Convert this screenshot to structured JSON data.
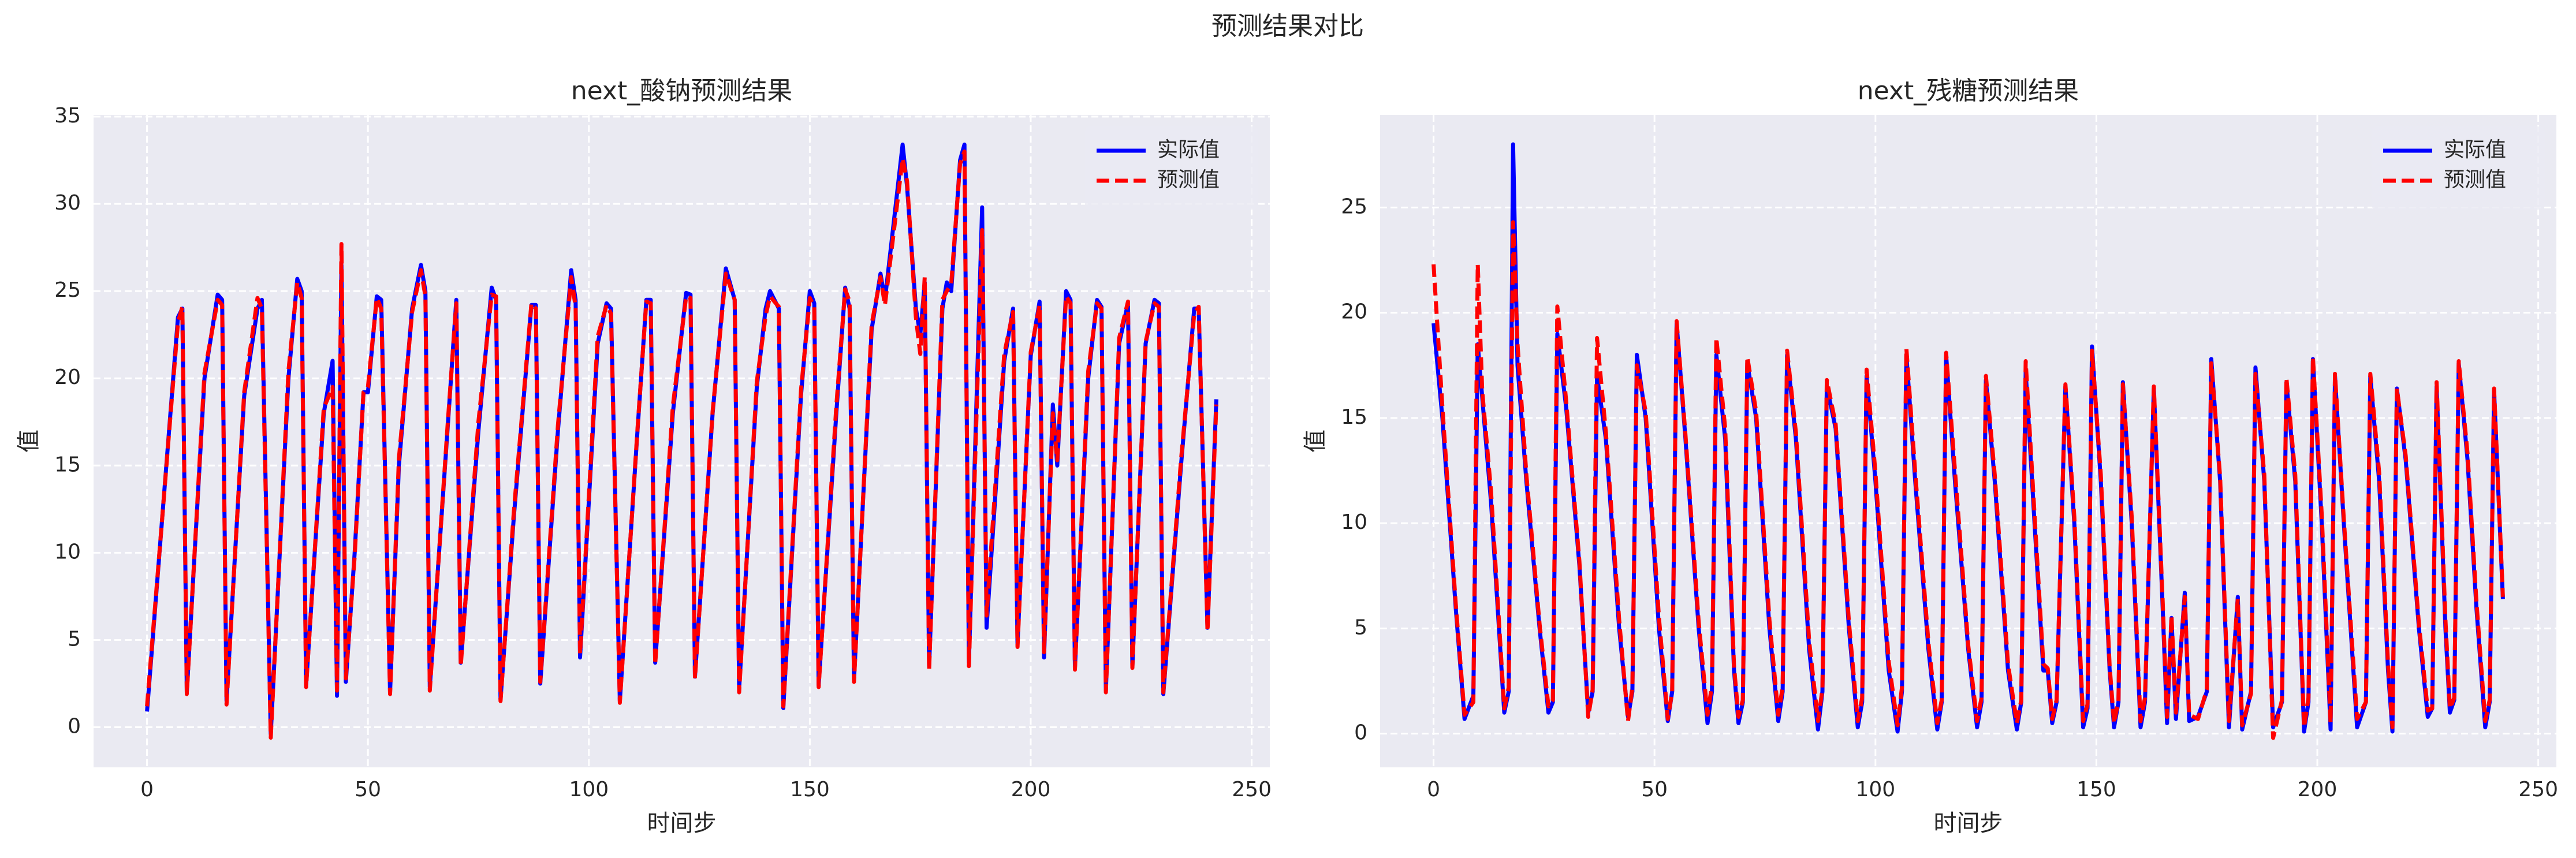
{
  "title": "预测结果对比",
  "chart_data": [
    {
      "type": "line",
      "title": "next_酸钠预测结果",
      "x_label": "时间步",
      "y_label": "值",
      "grid": true,
      "legend": "upper right",
      "xlim": [
        -12.1,
        254.1
      ],
      "xticks": [
        0,
        50,
        100,
        150,
        200,
        250
      ],
      "ylim": [
        -2.3,
        35.1
      ],
      "yticks": [
        0,
        5,
        10,
        15,
        20,
        25,
        30,
        35
      ],
      "x": [
        0,
        7,
        8,
        9,
        13,
        16,
        17,
        18,
        22,
        25,
        26,
        28,
        32,
        34,
        35,
        36,
        40,
        42,
        43,
        44,
        45,
        47,
        49,
        50,
        52,
        53,
        55,
        57,
        60,
        62,
        63,
        64,
        68,
        70,
        71,
        75,
        78,
        79,
        80,
        83,
        87,
        88,
        89,
        93,
        96,
        97,
        98,
        102,
        104,
        105,
        107,
        111,
        113,
        114,
        115,
        119,
        122,
        123,
        124,
        128,
        131,
        133,
        134,
        138,
        140,
        141,
        143,
        144,
        148,
        150,
        151,
        152,
        156,
        158,
        159,
        160,
        164,
        166,
        167,
        171,
        172,
        174,
        175,
        176,
        177,
        180,
        181,
        182,
        184,
        185,
        186,
        189,
        190,
        194,
        196,
        197,
        200,
        202,
        203,
        205,
        206,
        208,
        209,
        210,
        213,
        215,
        216,
        217,
        220,
        222,
        223,
        226,
        228,
        229,
        230,
        234,
        237,
        238,
        240,
        242
      ],
      "series": [
        {
          "name": "实际值",
          "color": "#0000ff",
          "style": "solid",
          "values": [
            0.9,
            23.5,
            24,
            2,
            20,
            24.8,
            24.5,
            1.5,
            19,
            24,
            24.5,
            -0.4,
            20,
            25.7,
            25,
            2.4,
            18,
            21,
            1.8,
            26.5,
            2.6,
            10,
            19.2,
            19.2,
            24.7,
            24.5,
            2,
            15,
            24,
            26.5,
            25,
            2.3,
            17,
            24.5,
            3.7,
            17,
            25.2,
            24.5,
            1.6,
            12,
            24.2,
            24.2,
            2.5,
            17,
            26.2,
            24.5,
            4,
            22,
            24.3,
            24,
            1.5,
            17,
            24.5,
            24.5,
            3.7,
            18,
            24.9,
            24.8,
            2.9,
            18,
            26.3,
            24.5,
            2.2,
            19.5,
            24,
            25,
            24,
            1.1,
            19,
            25,
            24.3,
            2.4,
            18,
            25.2,
            24,
            2.7,
            22.8,
            26,
            24.5,
            33.4,
            31,
            24,
            22.5,
            25.5,
            3.5,
            24,
            25.5,
            25,
            32.5,
            33.4,
            3.7,
            29.8,
            5.7,
            21,
            24,
            4.8,
            21.3,
            24.4,
            4,
            18.5,
            15,
            25,
            24.5,
            3.4,
            20,
            24.5,
            24.1,
            2.1,
            22,
            24.3,
            3.5,
            22,
            24.5,
            24.3,
            1.9,
            15,
            24,
            24,
            5.7,
            18.8
          ]
        },
        {
          "name": "预测值",
          "color": "#ff0000",
          "style": "dashed",
          "values": [
            1.2,
            23.2,
            24.1,
            1.9,
            20.3,
            24.5,
            24.2,
            1.3,
            19.2,
            24.6,
            24,
            -0.6,
            20.4,
            25.5,
            24.6,
            2.3,
            18.3,
            19.5,
            2.1,
            27.7,
            2.8,
            9.8,
            19.2,
            19.5,
            24.6,
            24,
            1.9,
            15.4,
            23.8,
            26.2,
            24.7,
            2.1,
            17.2,
            24.3,
            3.5,
            17.5,
            24.8,
            24.7,
            1.5,
            12.3,
            24.3,
            24,
            2.6,
            17.3,
            25.8,
            24.1,
            4.2,
            22.4,
            24.2,
            23.7,
            1.4,
            17.1,
            24.4,
            24.3,
            3.6,
            18.4,
            24.7,
            24.6,
            2.8,
            18.1,
            26,
            24.5,
            2,
            19.8,
            23.6,
            24.7,
            24.1,
            1.2,
            19.3,
            24.6,
            24.1,
            2.3,
            18.4,
            25.1,
            24.4,
            2.6,
            23.1,
            25.8,
            24.2,
            32.6,
            31.3,
            23.5,
            21.4,
            25.8,
            3.3,
            24.5,
            25,
            25.4,
            32.3,
            33,
            3.5,
            28.5,
            6.4,
            21.4,
            23.8,
            4.6,
            21.5,
            24.2,
            4.3,
            18,
            15.3,
            24.7,
            24.3,
            3.3,
            20.4,
            24.3,
            24,
            2,
            22.3,
            24.4,
            3.4,
            22.1,
            24.3,
            24.1,
            2,
            15.3,
            23.7,
            24.1,
            5.5,
            18.5
          ]
        }
      ]
    },
    {
      "type": "line",
      "title": "next_残糖预测结果",
      "x_label": "时间步",
      "y_label": "值",
      "grid": true,
      "legend": "upper right",
      "xlim": [
        -12.1,
        254.1
      ],
      "xticks": [
        0,
        50,
        100,
        150,
        200,
        250
      ],
      "ylim": [
        -1.6,
        29.4
      ],
      "yticks": [
        0,
        5,
        10,
        15,
        20,
        25
      ],
      "x": [
        0,
        2,
        5,
        7,
        9,
        10,
        11,
        13,
        16,
        17,
        18,
        19,
        21,
        24,
        26,
        27,
        28,
        30,
        33,
        35,
        36,
        37,
        39,
        42,
        44,
        45,
        46,
        48,
        51,
        53,
        54,
        55,
        57,
        60,
        62,
        63,
        64,
        66,
        68,
        69,
        70,
        71,
        73,
        76,
        78,
        79,
        80,
        82,
        85,
        87,
        88,
        89,
        91,
        94,
        96,
        97,
        98,
        100,
        103,
        105,
        106,
        107,
        109,
        112,
        114,
        115,
        116,
        118,
        121,
        123,
        124,
        125,
        127,
        130,
        132,
        133,
        134,
        136,
        138,
        139,
        140,
        141,
        143,
        145,
        147,
        148,
        149,
        151,
        153,
        154,
        155,
        156,
        158,
        160,
        161,
        163,
        165,
        166,
        167,
        168,
        170,
        171,
        173,
        175,
        176,
        178,
        180,
        182,
        183,
        185,
        186,
        188,
        190,
        192,
        193,
        195,
        197,
        198,
        199,
        201,
        203,
        204,
        206,
        209,
        211,
        212,
        214,
        216,
        217,
        218,
        220,
        223,
        225,
        226,
        227,
        229,
        230,
        231,
        232,
        234,
        236,
        238,
        239,
        240,
        242
      ],
      "series": [
        {
          "name": "实际值",
          "color": "#0000ff",
          "style": "solid",
          "values": [
            19.5,
            15,
            6,
            0.7,
            1.8,
            18.5,
            16,
            11,
            1,
            2,
            28,
            17.5,
            12,
            5,
            1,
            1.5,
            19,
            15.5,
            8,
            1,
            2,
            17,
            14,
            5,
            0.8,
            2,
            18,
            15,
            5,
            0.6,
            2,
            19.5,
            14,
            5,
            0.5,
            2,
            18,
            14,
            3,
            0.5,
            1.5,
            17.6,
            15,
            5,
            0.6,
            2,
            18,
            14,
            4,
            0.2,
            2,
            16.5,
            14.5,
            5,
            0.3,
            1.5,
            17,
            12,
            3,
            0.1,
            2,
            18,
            12,
            4,
            0.2,
            1.5,
            18,
            12,
            4,
            0.3,
            1.5,
            16.8,
            12,
            3,
            0.2,
            1.5,
            17.2,
            10,
            3,
            3,
            0.5,
            1.5,
            16.5,
            10,
            0.3,
            1.2,
            18.4,
            12,
            3,
            0.3,
            1.5,
            16.7,
            10,
            0.3,
            1.5,
            16.4,
            6,
            0.5,
            5.5,
            0.7,
            6.7,
            0.6,
            0.8,
            2,
            17.8,
            12,
            0.3,
            6.5,
            0.2,
            2,
            17.4,
            12,
            0.3,
            1.5,
            16.7,
            12,
            0.1,
            1.5,
            17.8,
            10,
            0.2,
            17,
            10,
            0.3,
            1.5,
            17,
            12,
            3,
            0.1,
            16.4,
            13,
            5,
            0.8,
            1.2,
            16.5,
            5,
            1,
            1.6,
            17.6,
            13,
            6,
            0.3,
            1.5,
            16.3,
            6.4
          ]
        },
        {
          "name": "预测值",
          "color": "#ff0000",
          "style": "dashed",
          "values": [
            22.3,
            15.5,
            6.2,
            0.9,
            1.5,
            22.3,
            16.3,
            11.5,
            1.2,
            2.2,
            24.3,
            18.5,
            12.3,
            5.2,
            1.3,
            1.6,
            20.3,
            15.8,
            8.2,
            0.8,
            2.1,
            18.8,
            14.3,
            5.4,
            0.6,
            2.2,
            17.5,
            15.3,
            5.5,
            0.7,
            2,
            19.6,
            14.2,
            5.3,
            0.9,
            2.3,
            18.8,
            14.5,
            3.2,
            0.8,
            1.6,
            17.9,
            15.3,
            5.4,
            0.9,
            2.2,
            18.2,
            14.3,
            4.4,
            0.6,
            2.1,
            16.8,
            14.7,
            5.3,
            0.6,
            1.7,
            17.3,
            12.4,
            3.4,
            0.4,
            2.2,
            18.3,
            12.4,
            4.3,
            0.5,
            1.6,
            18.1,
            12.5,
            4.2,
            0.6,
            1.7,
            17,
            12.3,
            3.3,
            0.5,
            1.6,
            17.7,
            10.4,
            3.3,
            3.1,
            0.7,
            1.6,
            16.6,
            10.3,
            0.6,
            1.4,
            18.2,
            12.3,
            3.2,
            0.5,
            1.6,
            16.6,
            10.3,
            0.6,
            1.7,
            16.5,
            6.3,
            0.8,
            5.6,
            1,
            6.5,
            0.9,
            0.7,
            2.1,
            17.6,
            12.2,
            0.6,
            6.4,
            0.4,
            1.9,
            17.1,
            12.3,
            -0.2,
            1.6,
            16.9,
            12.3,
            0.3,
            1.7,
            17.9,
            10.4,
            0.5,
            17.1,
            10.2,
            0.7,
            1.5,
            17.1,
            12.4,
            3.3,
            0.3,
            16.4,
            13.2,
            5.2,
            1.1,
            1.2,
            16.7,
            5.4,
            1.2,
            1.7,
            17.7,
            13.3,
            6.3,
            0.6,
            1.6,
            16.4,
            6.5
          ]
        }
      ]
    }
  ]
}
